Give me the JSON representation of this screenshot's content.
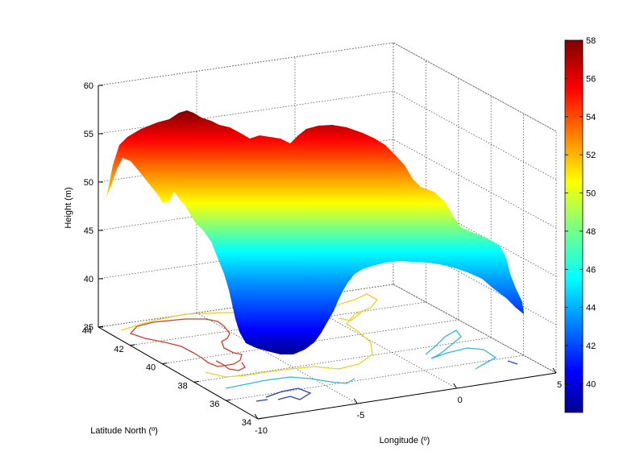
{
  "chart_data": {
    "type": "surface",
    "title": "",
    "xlabel": "Longitude (º)",
    "ylabel": "Latitude North (º)",
    "zlabel": "Height (m)",
    "x_ticks": [
      "-10",
      "-5",
      "0",
      "5"
    ],
    "y_ticks": [
      "34",
      "36",
      "38",
      "40",
      "42",
      "44"
    ],
    "z_ticks": [
      "35",
      "40",
      "45",
      "50",
      "55",
      "60"
    ],
    "xlim": [
      -10,
      5
    ],
    "ylim": [
      34,
      44
    ],
    "zlim": [
      35,
      60
    ],
    "colorbar": {
      "ticks": [
        "40",
        "42",
        "44",
        "46",
        "48",
        "50",
        "52",
        "54",
        "56",
        "58"
      ],
      "range": [
        38.5,
        58
      ],
      "colormap": "jet"
    },
    "grid": true,
    "contour_projection": true,
    "colors": {
      "low": "#00008f",
      "mid": "#ffff00",
      "high": "#800000"
    }
  }
}
